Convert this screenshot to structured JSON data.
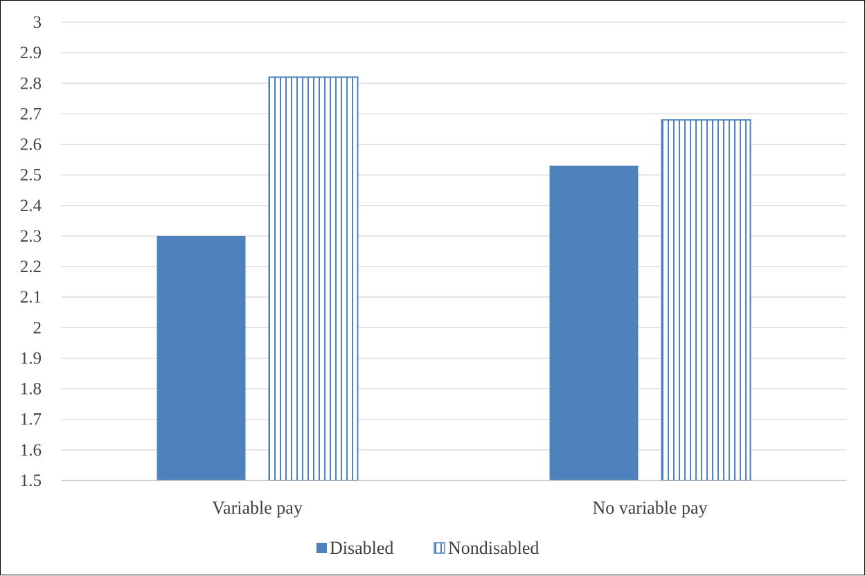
{
  "colors": {
    "disabled": "#4f81bd",
    "nondisabled_stroke": "#4f81bd",
    "grid": "#d9d9d9",
    "axis": "#bfbfbf",
    "text": "#404040"
  },
  "chart_data": {
    "type": "bar",
    "title": "",
    "xlabel": "",
    "ylabel": "",
    "categories": [
      "Variable pay",
      "No variable pay"
    ],
    "ylim": [
      1.5,
      3
    ],
    "ytick_step": 0.1,
    "yticks": [
      "3",
      "2.9",
      "2.8",
      "2.7",
      "2.6",
      "2.5",
      "2.4",
      "2.3",
      "2.2",
      "2.1",
      "2",
      "1.9",
      "1.8",
      "1.7",
      "1.6",
      "1.5"
    ],
    "grid": true,
    "legend_position": "bottom",
    "series": [
      {
        "name": "Disabled",
        "values": [
          2.3,
          2.53
        ],
        "fill": "solid"
      },
      {
        "name": "Nondisabled",
        "values": [
          2.82,
          2.68
        ],
        "fill": "vertical-hatch"
      }
    ]
  }
}
